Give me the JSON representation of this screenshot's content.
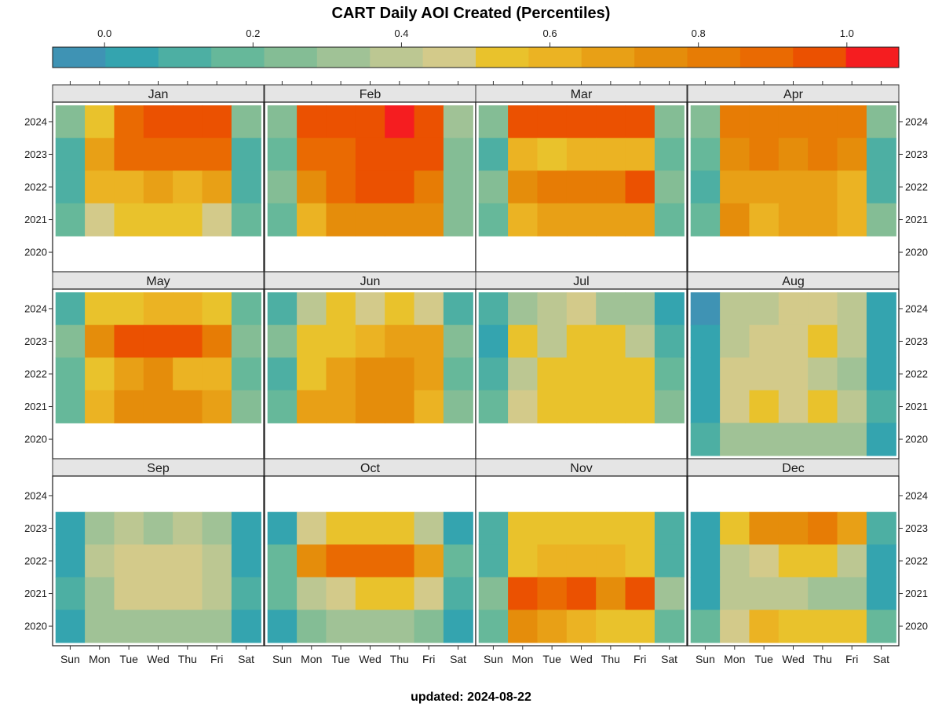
{
  "chart_data": {
    "type": "heatmap",
    "title": "CART Daily AOI Created (Percentiles)",
    "caption": "updated: 2024-08-22",
    "colorbar": {
      "ticks": [
        0.0,
        0.2,
        0.4,
        0.6,
        0.8,
        1.0
      ],
      "tick_labels": [
        "0.0",
        "0.2",
        "0.4",
        "0.6",
        "0.8",
        "1.0"
      ],
      "range": [
        -0.07,
        1.07
      ],
      "colors": [
        "#3F93B4",
        "#34A4AF",
        "#4DAFA3",
        "#66B89A",
        "#84BD95",
        "#A0C296",
        "#BCC792",
        "#D3CA8A",
        "#E9C22C",
        "#EBB323",
        "#E8A016",
        "#E58D0B",
        "#E77C05",
        "#EA6A02",
        "#EB5101",
        "#F51D20"
      ]
    },
    "years": [
      2024,
      2023,
      2022,
      2021,
      2020
    ],
    "weekdays": [
      "Sun",
      "Mon",
      "Tue",
      "Wed",
      "Thu",
      "Fri",
      "Sat"
    ],
    "panels": [
      {
        "month": "Jan",
        "values": [
          [
            0.25,
            0.52,
            0.88,
            0.93,
            0.93,
            0.93,
            0.25
          ],
          [
            0.11,
            0.68,
            0.88,
            0.88,
            0.88,
            0.88,
            0.11
          ],
          [
            0.11,
            0.61,
            0.61,
            0.68,
            0.61,
            0.68,
            0.11
          ],
          [
            0.18,
            0.46,
            0.54,
            0.54,
            0.54,
            0.46,
            0.18
          ],
          [
            null,
            null,
            null,
            null,
            null,
            null,
            null
          ]
        ]
      },
      {
        "month": "Feb",
        "values": [
          [
            0.25,
            0.93,
            0.93,
            0.93,
            1.05,
            0.93,
            0.32
          ],
          [
            0.18,
            0.88,
            0.88,
            0.93,
            0.93,
            0.93,
            0.25
          ],
          [
            0.25,
            0.75,
            0.88,
            0.93,
            0.93,
            0.82,
            0.25
          ],
          [
            0.18,
            0.61,
            0.75,
            0.75,
            0.75,
            0.75,
            0.25
          ],
          [
            null,
            null,
            null,
            null,
            null,
            null,
            null
          ]
        ]
      },
      {
        "month": "Mar",
        "values": [
          [
            0.25,
            0.93,
            0.93,
            0.93,
            0.93,
            0.93,
            0.25
          ],
          [
            0.11,
            0.61,
            0.54,
            0.61,
            0.61,
            0.61,
            0.18
          ],
          [
            0.25,
            0.75,
            0.82,
            0.82,
            0.82,
            0.93,
            0.25
          ],
          [
            0.18,
            0.61,
            0.68,
            0.68,
            0.68,
            0.68,
            0.18
          ],
          [
            null,
            null,
            null,
            null,
            null,
            null,
            null
          ]
        ]
      },
      {
        "month": "Apr",
        "values": [
          [
            0.25,
            0.82,
            0.82,
            0.82,
            0.82,
            0.82,
            0.25
          ],
          [
            0.18,
            0.75,
            0.82,
            0.75,
            0.82,
            0.75,
            0.11
          ],
          [
            0.11,
            0.68,
            0.68,
            0.68,
            0.68,
            0.61,
            0.11
          ],
          [
            0.18,
            0.75,
            0.61,
            0.68,
            0.68,
            0.61,
            0.25
          ],
          [
            null,
            null,
            null,
            null,
            null,
            null,
            null
          ]
        ]
      },
      {
        "month": "May",
        "values": [
          [
            0.11,
            0.54,
            0.54,
            0.61,
            0.61,
            0.54,
            0.18
          ],
          [
            0.25,
            0.75,
            0.93,
            0.93,
            0.93,
            0.82,
            0.25
          ],
          [
            0.18,
            0.54,
            0.68,
            0.75,
            0.61,
            0.61,
            0.18
          ],
          [
            0.18,
            0.61,
            0.75,
            0.75,
            0.75,
            0.68,
            0.25
          ],
          [
            null,
            null,
            null,
            null,
            null,
            null,
            null
          ]
        ]
      },
      {
        "month": "Jun",
        "values": [
          [
            0.11,
            0.39,
            0.5,
            0.46,
            0.5,
            0.46,
            0.11
          ],
          [
            0.25,
            0.54,
            0.54,
            0.61,
            0.68,
            0.68,
            0.25
          ],
          [
            0.11,
            0.54,
            0.68,
            0.75,
            0.75,
            0.68,
            0.18
          ],
          [
            0.18,
            0.68,
            0.68,
            0.75,
            0.75,
            0.61,
            0.25
          ],
          [
            null,
            null,
            null,
            null,
            null,
            null,
            null
          ]
        ]
      },
      {
        "month": "Jul",
        "values": [
          [
            0.11,
            0.32,
            0.39,
            0.46,
            0.32,
            0.32,
            0.04
          ],
          [
            0.04,
            0.5,
            0.39,
            0.5,
            0.5,
            0.39,
            0.11
          ],
          [
            0.11,
            0.39,
            0.5,
            0.5,
            0.5,
            0.5,
            0.18
          ],
          [
            0.18,
            0.46,
            0.5,
            0.5,
            0.5,
            0.5,
            0.25
          ],
          [
            null,
            null,
            null,
            null,
            null,
            null,
            null
          ]
        ]
      },
      {
        "month": "Aug",
        "values": [
          [
            -0.03,
            0.39,
            0.39,
            0.46,
            0.46,
            0.39,
            0.04
          ],
          [
            0.04,
            0.39,
            0.46,
            0.46,
            0.5,
            0.39,
            0.04
          ],
          [
            0.04,
            0.46,
            0.46,
            0.46,
            0.39,
            0.32,
            0.04
          ],
          [
            0.04,
            0.46,
            0.5,
            0.46,
            0.5,
            0.39,
            0.11
          ],
          [
            0.11,
            0.32,
            0.32,
            0.32,
            0.32,
            0.32,
            0.04
          ]
        ]
      },
      {
        "month": "Sep",
        "values": [
          [
            null,
            null,
            null,
            null,
            null,
            null,
            null
          ],
          [
            0.04,
            0.32,
            0.39,
            0.32,
            0.39,
            0.32,
            0.04
          ],
          [
            0.04,
            0.39,
            0.46,
            0.46,
            0.46,
            0.39,
            0.04
          ],
          [
            0.11,
            0.32,
            0.46,
            0.46,
            0.46,
            0.39,
            0.11
          ],
          [
            0.04,
            0.32,
            0.32,
            0.32,
            0.32,
            0.32,
            0.04
          ]
        ]
      },
      {
        "month": "Oct",
        "values": [
          [
            null,
            null,
            null,
            null,
            null,
            null,
            null
          ],
          [
            0.04,
            0.46,
            0.54,
            0.5,
            0.5,
            0.39,
            0.04
          ],
          [
            0.18,
            0.75,
            0.88,
            0.88,
            0.88,
            0.68,
            0.18
          ],
          [
            0.18,
            0.39,
            0.46,
            0.54,
            0.54,
            0.46,
            0.11
          ],
          [
            0.04,
            0.25,
            0.32,
            0.32,
            0.32,
            0.25,
            0.04
          ]
        ]
      },
      {
        "month": "Nov",
        "values": [
          [
            null,
            null,
            null,
            null,
            null,
            null,
            null
          ],
          [
            0.11,
            0.54,
            0.54,
            0.54,
            0.5,
            0.5,
            0.11
          ],
          [
            0.11,
            0.54,
            0.61,
            0.61,
            0.61,
            0.5,
            0.11
          ],
          [
            0.25,
            0.93,
            0.88,
            0.93,
            0.75,
            0.93,
            0.32
          ],
          [
            0.18,
            0.75,
            0.68,
            0.61,
            0.54,
            0.54,
            0.18
          ]
        ]
      },
      {
        "month": "Dec",
        "values": [
          [
            null,
            null,
            null,
            null,
            null,
            null,
            null
          ],
          [
            0.04,
            0.54,
            0.75,
            0.75,
            0.82,
            0.68,
            0.11
          ],
          [
            0.04,
            0.39,
            0.46,
            0.5,
            0.5,
            0.39,
            0.04
          ],
          [
            0.04,
            0.39,
            0.39,
            0.39,
            0.32,
            0.32,
            0.04
          ],
          [
            0.18,
            0.46,
            0.61,
            0.54,
            0.54,
            0.54,
            0.18
          ]
        ]
      }
    ]
  }
}
